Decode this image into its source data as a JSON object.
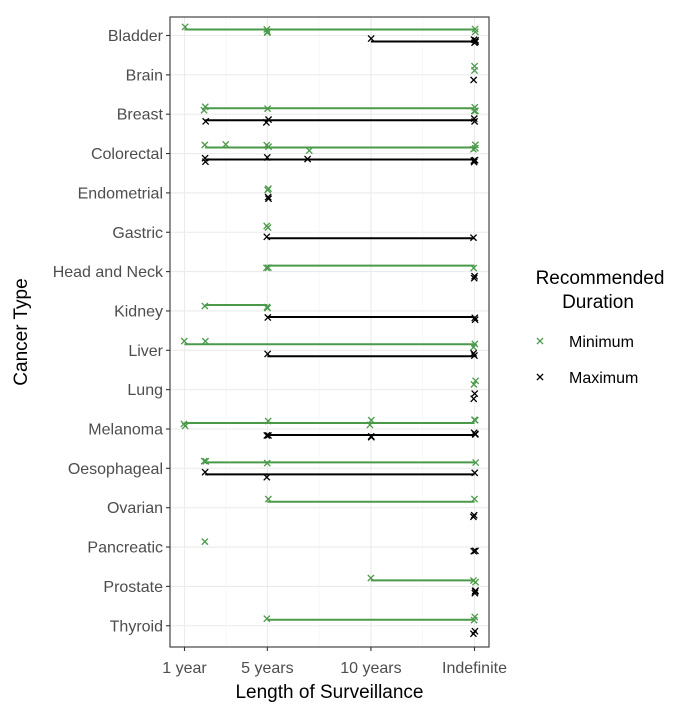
{
  "chart_data": {
    "type": "scatter",
    "xlabel": "Length of Surveillance",
    "ylabel": "Cancer Type",
    "x_ticks": [
      {
        "value": 1,
        "label": "1 year"
      },
      {
        "value": 5,
        "label": "5 years"
      },
      {
        "value": 10,
        "label": "10 years"
      },
      {
        "value": 15,
        "label": "Indefinite"
      }
    ],
    "xlim": [
      0.3,
      15.7
    ],
    "grid": true,
    "legend": {
      "title": "Recommended Duration",
      "title_lines": [
        "Recommended",
        "Duration"
      ],
      "position": "right",
      "entries": [
        {
          "name": "Minimum",
          "color": "#4a9a4a"
        },
        {
          "name": "Maximum",
          "color": "#000000"
        }
      ]
    },
    "colors": {
      "minimum": "#4a9a4a",
      "maximum": "#000000",
      "grid": "#ebebeb",
      "panel_border": "#333333"
    },
    "categories": [
      "Bladder",
      "Brain",
      "Breast",
      "Colorectal",
      "Endometrial",
      "Gastric",
      "Head and Neck",
      "Kidney",
      "Liver",
      "Lung",
      "Melanoma",
      "Oesophageal",
      "Ovarian",
      "Pancreatic",
      "Prostate",
      "Thyroid"
    ],
    "series": [
      {
        "name": "Minimum",
        "data": [
          {
            "category": "Bladder",
            "range": [
              1,
              15
            ],
            "points": [
              1,
              5,
              5,
              5,
              15,
              15
            ]
          },
          {
            "category": "Brain",
            "range": null,
            "points": [
              15,
              15
            ]
          },
          {
            "category": "Breast",
            "range": [
              2,
              15
            ],
            "points": [
              2,
              2,
              5,
              15,
              15,
              15
            ]
          },
          {
            "category": "Colorectal",
            "range": [
              2,
              15
            ],
            "points": [
              2,
              3,
              5,
              5,
              7,
              15,
              15,
              15
            ]
          },
          {
            "category": "Endometrial",
            "range": null,
            "points": [
              5,
              5
            ]
          },
          {
            "category": "Gastric",
            "range": null,
            "points": [
              5,
              5
            ]
          },
          {
            "category": "Head and Neck",
            "range": [
              5,
              15
            ],
            "points": [
              5,
              5,
              15
            ]
          },
          {
            "category": "Kidney",
            "range": [
              2,
              5
            ],
            "points": [
              2,
              5,
              5
            ]
          },
          {
            "category": "Liver",
            "range": [
              1,
              15
            ],
            "points": [
              1,
              2,
              15,
              15
            ]
          },
          {
            "category": "Lung",
            "range": null,
            "points": [
              15,
              15
            ]
          },
          {
            "category": "Melanoma",
            "range": [
              1,
              15
            ],
            "points": [
              1,
              1,
              5,
              10,
              10,
              15,
              15
            ]
          },
          {
            "category": "Oesophageal",
            "range": [
              2,
              15
            ],
            "points": [
              2,
              2,
              5,
              15
            ]
          },
          {
            "category": "Ovarian",
            "range": [
              5,
              15
            ],
            "points": [
              5,
              15
            ]
          },
          {
            "category": "Pancreatic",
            "range": null,
            "points": [
              2
            ]
          },
          {
            "category": "Prostate",
            "range": [
              10,
              15
            ],
            "points": [
              10,
              15,
              15
            ]
          },
          {
            "category": "Thyroid",
            "range": [
              5,
              15
            ],
            "points": [
              5,
              15,
              15
            ]
          }
        ]
      },
      {
        "name": "Maximum",
        "data": [
          {
            "category": "Bladder",
            "range": [
              10,
              15
            ],
            "points": [
              10,
              15,
              15,
              15,
              15
            ]
          },
          {
            "category": "Brain",
            "range": null,
            "points": [
              15
            ]
          },
          {
            "category": "Breast",
            "range": [
              2,
              15
            ],
            "points": [
              2,
              5,
              5,
              15,
              15
            ]
          },
          {
            "category": "Colorectal",
            "range": [
              2,
              15
            ],
            "points": [
              2,
              2,
              5,
              7,
              15,
              15,
              15
            ]
          },
          {
            "category": "Endometrial",
            "range": null,
            "points": [
              5,
              5
            ]
          },
          {
            "category": "Gastric",
            "range": [
              5,
              15
            ],
            "points": [
              5,
              15
            ]
          },
          {
            "category": "Head and Neck",
            "range": null,
            "points": [
              15,
              15
            ]
          },
          {
            "category": "Kidney",
            "range": [
              5,
              15
            ],
            "points": [
              5,
              15,
              15
            ]
          },
          {
            "category": "Liver",
            "range": [
              5,
              15
            ],
            "points": [
              5,
              15,
              15
            ]
          },
          {
            "category": "Lung",
            "range": null,
            "points": [
              15,
              15
            ]
          },
          {
            "category": "Melanoma",
            "range": [
              5,
              15
            ],
            "points": [
              5,
              5,
              10,
              10,
              15,
              15,
              15
            ]
          },
          {
            "category": "Oesophageal",
            "range": [
              2,
              15
            ],
            "points": [
              2,
              5,
              15
            ]
          },
          {
            "category": "Ovarian",
            "range": null,
            "points": [
              15,
              15
            ]
          },
          {
            "category": "Pancreatic",
            "range": null,
            "points": [
              15,
              15
            ]
          },
          {
            "category": "Prostate",
            "range": null,
            "points": [
              15,
              15,
              15
            ]
          },
          {
            "category": "Thyroid",
            "range": null,
            "points": [
              15,
              15
            ]
          }
        ]
      }
    ]
  }
}
